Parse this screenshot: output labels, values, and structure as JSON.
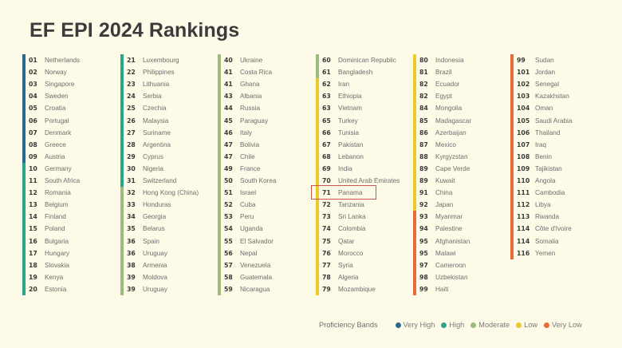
{
  "title": "EF EPI 2024 Rankings",
  "bands": {
    "very_high": {
      "label": "Very High",
      "color": "#2f6a8d"
    },
    "high": {
      "label": "High",
      "color": "#2aa58a"
    },
    "moderate": {
      "label": "Moderate",
      "color": "#9dbb7d"
    },
    "low": {
      "label": "Low",
      "color": "#ecca2b"
    },
    "very_low": {
      "label": "Very Low",
      "color": "#ea6b3a"
    }
  },
  "legend": {
    "title": "Proficiency Bands",
    "items": [
      {
        "label": "Very High",
        "color": "#2f6a8d"
      },
      {
        "label": "High",
        "color": "#2aa58a"
      },
      {
        "label": "Moderate",
        "color": "#9dbb7d"
      },
      {
        "label": "Low",
        "color": "#ecca2b"
      },
      {
        "label": "Very Low",
        "color": "#ea6b3a"
      }
    ]
  },
  "highlighted": {
    "rank": "71",
    "country": "Panama"
  },
  "columns": [
    {
      "segments": [
        {
          "band": "very_high",
          "rows": 9
        },
        {
          "band": "high",
          "rows": 11
        }
      ],
      "rows": [
        {
          "rank": "01",
          "country": "Netherlands"
        },
        {
          "rank": "02",
          "country": "Norway"
        },
        {
          "rank": "03",
          "country": "Singapore"
        },
        {
          "rank": "04",
          "country": "Sweden"
        },
        {
          "rank": "05",
          "country": "Croatia"
        },
        {
          "rank": "06",
          "country": "Portugal"
        },
        {
          "rank": "07",
          "country": "Denmark"
        },
        {
          "rank": "08",
          "country": "Greece"
        },
        {
          "rank": "09",
          "country": "Austria"
        },
        {
          "rank": "10",
          "country": "Germany"
        },
        {
          "rank": "11",
          "country": "South Africa"
        },
        {
          "rank": "12",
          "country": "Romania"
        },
        {
          "rank": "13",
          "country": "Belgium"
        },
        {
          "rank": "14",
          "country": "Finland"
        },
        {
          "rank": "15",
          "country": "Poland"
        },
        {
          "rank": "16",
          "country": "Bulgaria"
        },
        {
          "rank": "17",
          "country": "Hungary"
        },
        {
          "rank": "18",
          "country": "Slovakia"
        },
        {
          "rank": "19",
          "country": "Kenya"
        },
        {
          "rank": "20",
          "country": "Estonia"
        }
      ]
    },
    {
      "segments": [
        {
          "band": "high",
          "rows": 11
        },
        {
          "band": "moderate",
          "rows": 9
        }
      ],
      "rows": [
        {
          "rank": "21",
          "country": "Luxembourg"
        },
        {
          "rank": "22",
          "country": "Philippines"
        },
        {
          "rank": "23",
          "country": "Lithuania"
        },
        {
          "rank": "24",
          "country": "Serbia"
        },
        {
          "rank": "25",
          "country": "Czechia"
        },
        {
          "rank": "26",
          "country": "Malaysia"
        },
        {
          "rank": "27",
          "country": "Suriname"
        },
        {
          "rank": "28",
          "country": "Argentina"
        },
        {
          "rank": "29",
          "country": "Cyprus"
        },
        {
          "rank": "30",
          "country": "Nigeria"
        },
        {
          "rank": "31",
          "country": "Switzerland"
        },
        {
          "rank": "32",
          "country": "Hong Kong (China)"
        },
        {
          "rank": "33",
          "country": "Honduras"
        },
        {
          "rank": "34",
          "country": "Georgia"
        },
        {
          "rank": "35",
          "country": "Belarus"
        },
        {
          "rank": "36",
          "country": "Spain"
        },
        {
          "rank": "36",
          "country": "Uruguay"
        },
        {
          "rank": "38",
          "country": "Armenia"
        },
        {
          "rank": "39",
          "country": "Moldova"
        },
        {
          "rank": "39",
          "country": "Uruguay"
        }
      ]
    },
    {
      "segments": [
        {
          "band": "moderate",
          "rows": 20
        }
      ],
      "rows": [
        {
          "rank": "40",
          "country": "Ukraine"
        },
        {
          "rank": "41",
          "country": "Costa Rica"
        },
        {
          "rank": "41",
          "country": "Ghana"
        },
        {
          "rank": "43",
          "country": "Albania"
        },
        {
          "rank": "44",
          "country": "Russia"
        },
        {
          "rank": "45",
          "country": "Paraguay"
        },
        {
          "rank": "46",
          "country": "Italy"
        },
        {
          "rank": "47",
          "country": "Bolivia"
        },
        {
          "rank": "47",
          "country": "Chile"
        },
        {
          "rank": "49",
          "country": "France"
        },
        {
          "rank": "50",
          "country": "South Korea"
        },
        {
          "rank": "51",
          "country": "Israel"
        },
        {
          "rank": "52",
          "country": "Cuba"
        },
        {
          "rank": "53",
          "country": "Peru"
        },
        {
          "rank": "54",
          "country": "Uganda"
        },
        {
          "rank": "55",
          "country": "El Salvador"
        },
        {
          "rank": "56",
          "country": "Nepal"
        },
        {
          "rank": "57",
          "country": "Venezuela"
        },
        {
          "rank": "58",
          "country": "Guatemala"
        },
        {
          "rank": "59",
          "country": "Nicaragua"
        }
      ]
    },
    {
      "segments": [
        {
          "band": "moderate",
          "rows": 2
        },
        {
          "band": "low",
          "rows": 18
        }
      ],
      "rows": [
        {
          "rank": "60",
          "country": "Dominican Republic"
        },
        {
          "rank": "61",
          "country": "Bangladesh"
        },
        {
          "rank": "62",
          "country": "Iran"
        },
        {
          "rank": "63",
          "country": "Ethiopia"
        },
        {
          "rank": "63",
          "country": "Vietnam"
        },
        {
          "rank": "65",
          "country": "Turkey"
        },
        {
          "rank": "66",
          "country": "Tunisia"
        },
        {
          "rank": "67",
          "country": "Pakistan"
        },
        {
          "rank": "68",
          "country": "Lebanon"
        },
        {
          "rank": "69",
          "country": "India"
        },
        {
          "rank": "70",
          "country": "United Arab Emirates"
        },
        {
          "rank": "71",
          "country": "Panama"
        },
        {
          "rank": "72",
          "country": "Tanzania"
        },
        {
          "rank": "73",
          "country": "Sri Lanka"
        },
        {
          "rank": "74",
          "country": "Colombia"
        },
        {
          "rank": "75",
          "country": "Qatar"
        },
        {
          "rank": "76",
          "country": "Morocco"
        },
        {
          "rank": "77",
          "country": "Syria"
        },
        {
          "rank": "78",
          "country": "Algeria"
        },
        {
          "rank": "79",
          "country": "Mozambique"
        }
      ]
    },
    {
      "segments": [
        {
          "band": "low",
          "rows": 13
        },
        {
          "band": "very_low",
          "rows": 7
        }
      ],
      "rows": [
        {
          "rank": "80",
          "country": "Indonesia"
        },
        {
          "rank": "81",
          "country": "Brazil"
        },
        {
          "rank": "82",
          "country": "Ecuador"
        },
        {
          "rank": "82",
          "country": "Egypt"
        },
        {
          "rank": "84",
          "country": "Mongolia"
        },
        {
          "rank": "85",
          "country": "Madagascar"
        },
        {
          "rank": "86",
          "country": "Azerbaijan"
        },
        {
          "rank": "87",
          "country": "Mexico"
        },
        {
          "rank": "88",
          "country": "Kyrgyzstan"
        },
        {
          "rank": "89",
          "country": "Cape Verde"
        },
        {
          "rank": "89",
          "country": "Kuwait"
        },
        {
          "rank": "91",
          "country": "China"
        },
        {
          "rank": "92",
          "country": "Japan"
        },
        {
          "rank": "93",
          "country": "Myanmar"
        },
        {
          "rank": "94",
          "country": "Palestine"
        },
        {
          "rank": "95",
          "country": "Afghanistan"
        },
        {
          "rank": "95",
          "country": "Malawi"
        },
        {
          "rank": "97",
          "country": "Cameroon"
        },
        {
          "rank": "98",
          "country": "Uzbekistan"
        },
        {
          "rank": "99",
          "country": "Haiti"
        }
      ]
    },
    {
      "segments": [
        {
          "band": "very_low",
          "rows": 17
        }
      ],
      "rows": [
        {
          "rank": "99",
          "country": "Sudan"
        },
        {
          "rank": "101",
          "country": "Jordan"
        },
        {
          "rank": "102",
          "country": "Senegal"
        },
        {
          "rank": "103",
          "country": "Kazakhstan"
        },
        {
          "rank": "104",
          "country": "Oman"
        },
        {
          "rank": "105",
          "country": "Saudi Arabia"
        },
        {
          "rank": "106",
          "country": "Thailand"
        },
        {
          "rank": "107",
          "country": "Iraq"
        },
        {
          "rank": "108",
          "country": "Benin"
        },
        {
          "rank": "109",
          "country": "Tajikistan"
        },
        {
          "rank": "110",
          "country": "Angola"
        },
        {
          "rank": "111",
          "country": "Cambodia"
        },
        {
          "rank": "112",
          "country": "Libya"
        },
        {
          "rank": "113",
          "country": "Rwanda"
        },
        {
          "rank": "114",
          "country": "Côte d'Ivoire"
        },
        {
          "rank": "114",
          "country": "Somalia"
        },
        {
          "rank": "116",
          "country": "Yemen"
        }
      ]
    }
  ]
}
